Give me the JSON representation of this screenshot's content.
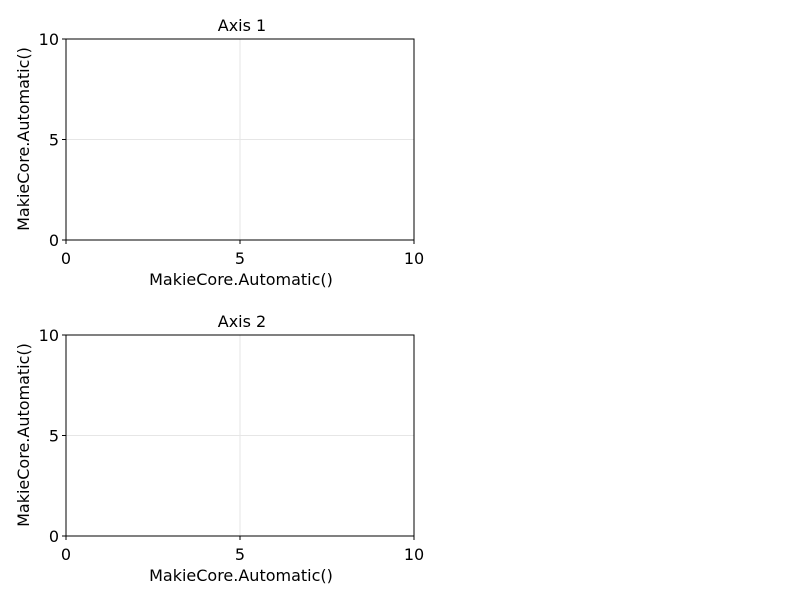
{
  "chart_data": [
    {
      "type": "scatter",
      "title": "Axis 1",
      "xlabel": "MakieCore.Automatic()",
      "ylabel": "MakieCore.Automatic()",
      "xlim": [
        0,
        10
      ],
      "ylim": [
        0,
        10
      ],
      "xticks": [
        "0",
        "5",
        "10"
      ],
      "yticks": [
        "0",
        "5",
        "10"
      ],
      "grid": true,
      "series": []
    },
    {
      "type": "scatter",
      "title": "Axis 2",
      "xlabel": "MakieCore.Automatic()",
      "ylabel": "MakieCore.Automatic()",
      "xlim": [
        0,
        10
      ],
      "ylim": [
        0,
        10
      ],
      "xticks": [
        "0",
        "5",
        "10"
      ],
      "yticks": [
        "0",
        "5",
        "10"
      ],
      "grid": true,
      "series": []
    }
  ]
}
